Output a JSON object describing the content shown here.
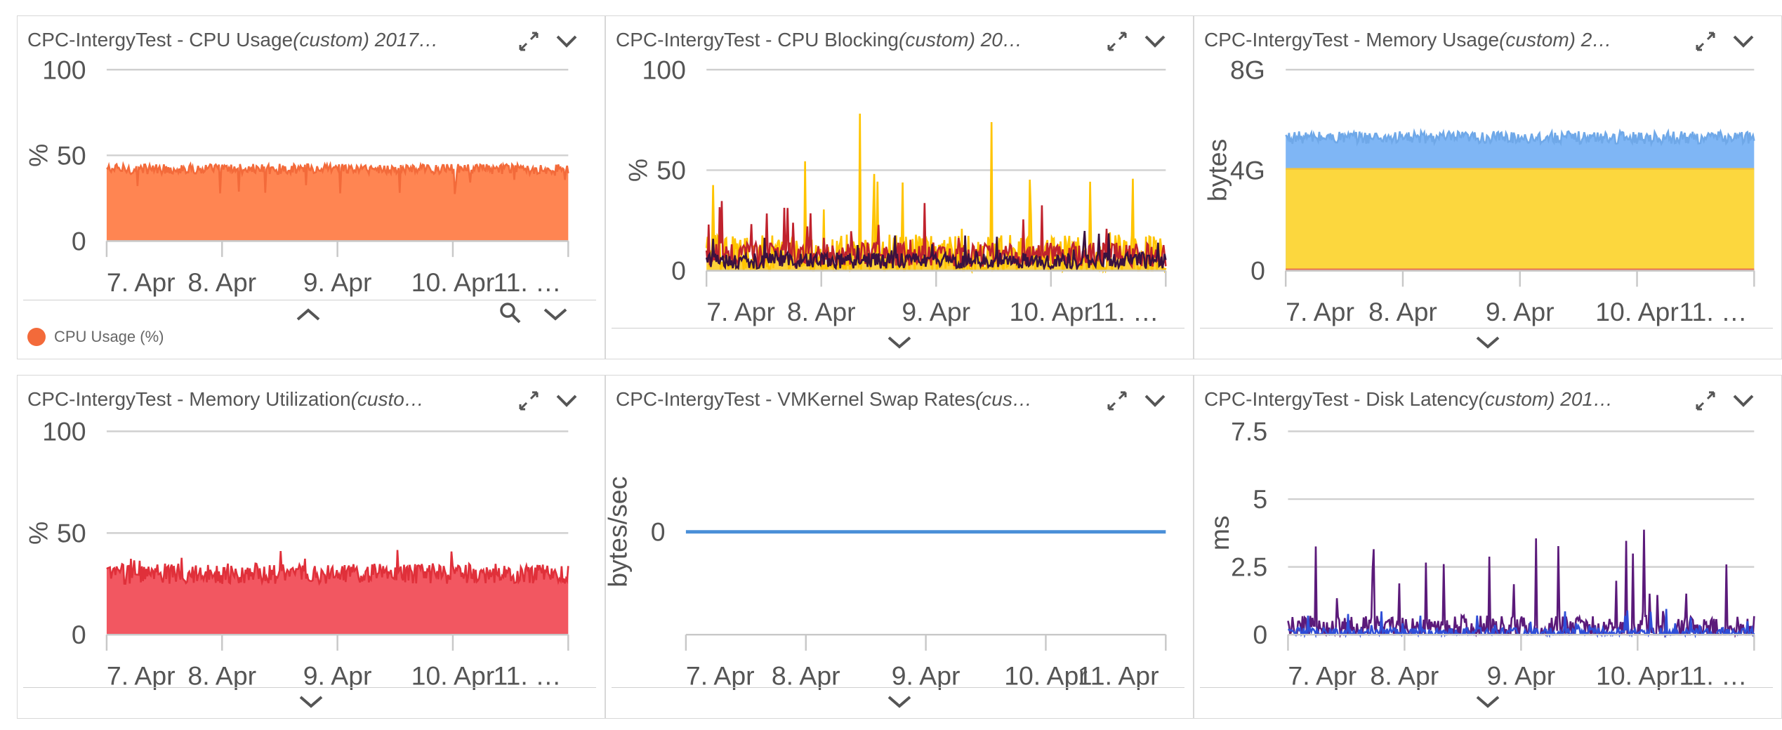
{
  "panels": [
    {
      "title_main": "CPC-IntergyTest - CPU Usage",
      "title_custom": "(custom) 2017…",
      "legend": {
        "label": "CPU Usage (%)",
        "color": "#f36a3a"
      },
      "chart_data": {
        "type": "area",
        "ylabel": "%",
        "ylim": [
          0,
          100
        ],
        "yticks": [
          "0",
          "50",
          "100"
        ],
        "xticks": [
          "7. Apr",
          "8. Apr",
          "9. Apr",
          "10. Apr",
          "11. …"
        ],
        "series": [
          {
            "color": "#f36a3a",
            "fill": "#ff8552",
            "base": 42,
            "noise": 3,
            "dips": 5
          }
        ]
      }
    },
    {
      "title_main": "CPC-IntergyTest - CPU Blocking",
      "title_custom": "(custom) 20…",
      "chart_data": {
        "type": "line",
        "ylabel": "%",
        "ylim": [
          0,
          100
        ],
        "yticks": [
          "0",
          "50",
          "100"
        ],
        "xticks": [
          "7. Apr",
          "8. Apr",
          "9. Apr",
          "10. Apr",
          "11. …"
        ],
        "series": [
          {
            "color": "#ffc400",
            "fill": "#ffd23a",
            "base": 8,
            "noise": 10,
            "spikes": 80
          },
          {
            "color": "#c0222d",
            "base": 8,
            "noise": 6,
            "spikes": 35
          },
          {
            "color": "#3a1240",
            "base": 5,
            "noise": 4,
            "spikes": 22
          }
        ]
      }
    },
    {
      "title_main": "CPC-IntergyTest - Memory Usage",
      "title_custom": "(custom) 2…",
      "chart_data": {
        "type": "area",
        "ylabel": "bytes",
        "ylim": [
          0,
          8
        ],
        "yticks": [
          "0",
          "4G",
          "8G"
        ],
        "xticks": [
          "7. Apr",
          "8. Apr",
          "9. Apr",
          "10. Apr",
          "11. …"
        ],
        "series": [
          {
            "color": "#6fa8e8",
            "fill": "#7fb6f5",
            "base": 5.3,
            "noise": 0.25
          },
          {
            "color": "#f5c43a",
            "fill": "#fcd73e",
            "base": 4.05,
            "noise": 0
          },
          {
            "color": "#e8684a",
            "fill": "#e8684a",
            "base": 0.05,
            "noise": 0
          }
        ]
      }
    },
    {
      "title_main": "CPC-IntergyTest - Memory Utilization",
      "title_custom": "(custo…",
      "chart_data": {
        "type": "area",
        "ylabel": "%",
        "ylim": [
          0,
          100
        ],
        "yticks": [
          "0",
          "50",
          "100"
        ],
        "xticks": [
          "7. Apr",
          "8. Apr",
          "9. Apr",
          "10. Apr",
          "11. …"
        ],
        "series": [
          {
            "color": "#e0303a",
            "fill": "#f25761",
            "base": 30,
            "noise": 5,
            "spikes": 42
          }
        ]
      }
    },
    {
      "title_main": "CPC-IntergyTest - VMKernel Swap Rates",
      "title_custom": "(cus…",
      "chart_data": {
        "type": "line",
        "ylabel": "bytes/sec",
        "ylim": [
          -1,
          1
        ],
        "yticks": [
          "0"
        ],
        "xticks": [
          "7. Apr",
          "8. Apr",
          "9. Apr",
          "10. Apr",
          "11. Apr"
        ],
        "series": [
          {
            "color": "#4a8fd8",
            "base": 0,
            "noise": 0
          }
        ]
      }
    },
    {
      "title_main": "CPC-IntergyTest - Disk Latency",
      "title_custom": "(custom) 201…",
      "chart_data": {
        "type": "line",
        "ylabel": "ms",
        "ylim": [
          0,
          7.5
        ],
        "yticks": [
          "0",
          "2.5",
          "5",
          "7.5"
        ],
        "xticks": [
          "7. Apr",
          "8. Apr",
          "9. Apr",
          "10. Apr",
          "11. …"
        ],
        "series": [
          {
            "color": "#5b1a7a",
            "base": 0.2,
            "noise": 0.5,
            "spikes": 4
          },
          {
            "color": "#2f4fd8",
            "base": 0.05,
            "noise": 0.2,
            "spikes": 1.0
          }
        ]
      }
    }
  ]
}
